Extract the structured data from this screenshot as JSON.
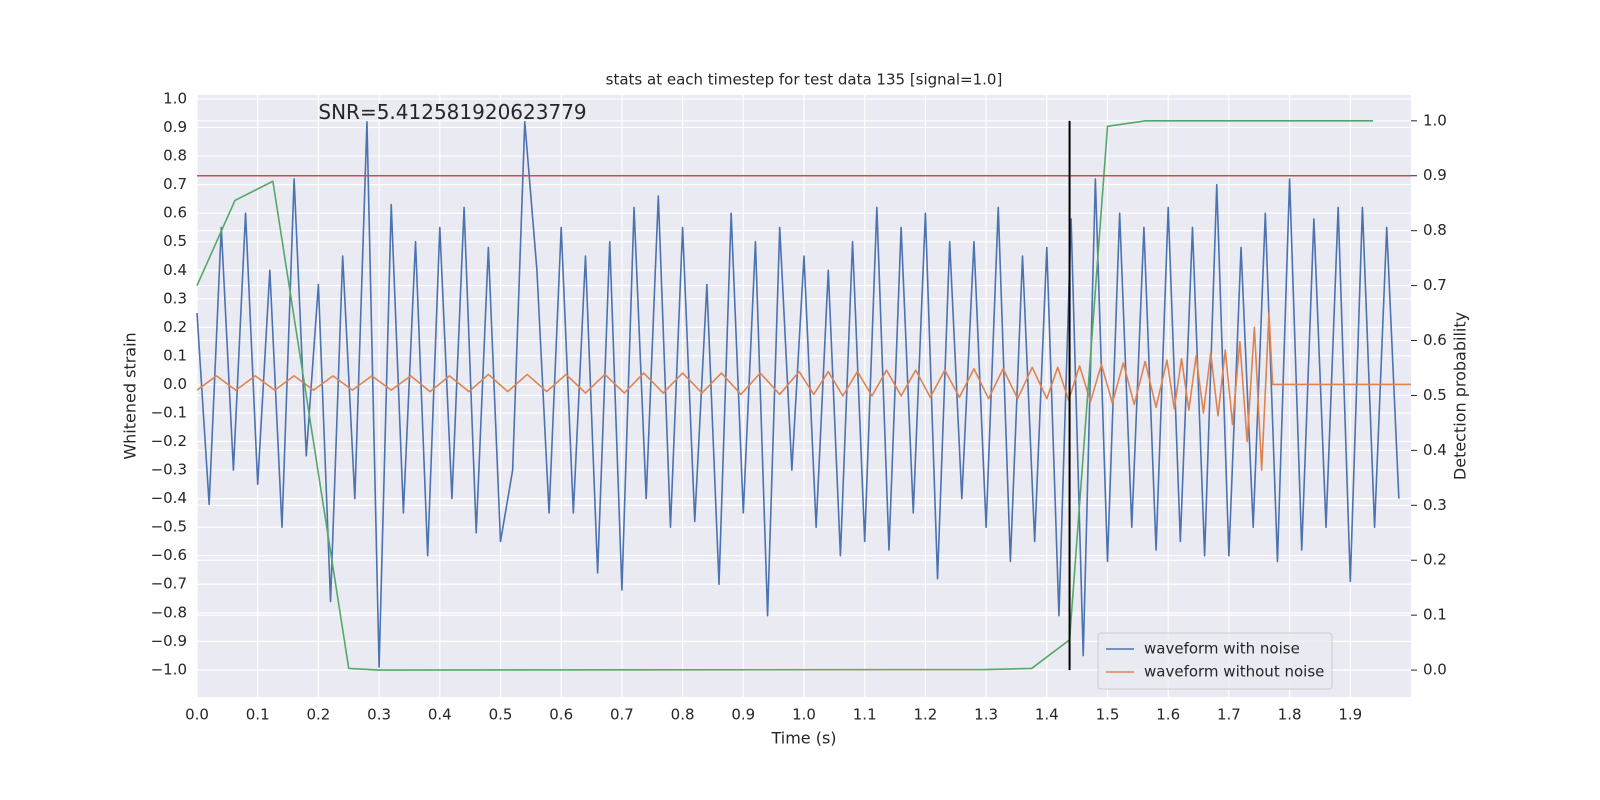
{
  "chart_data": {
    "type": "line",
    "title": "stats at each timestep for test data 135 [signal=1.0]",
    "xlabel": "Time (s)",
    "ylabel": "Whitened strain",
    "y2label": "Detection probability",
    "annotation": {
      "text": "SNR=5.412581920623779",
      "x": 0.2,
      "y": 0.95
    },
    "xlim": [
      0,
      2.0
    ],
    "ylim": [
      -1.095,
      1.014
    ],
    "y2lim": [
      -0.049,
      1.047
    ],
    "xticks": [
      {
        "value": 0,
        "label": "0.0"
      },
      {
        "value": 0.1,
        "label": "0.1"
      },
      {
        "value": 0.2,
        "label": "0.2"
      },
      {
        "value": 0.3,
        "label": "0.3"
      },
      {
        "value": 0.4,
        "label": "0.4"
      },
      {
        "value": 0.5,
        "label": "0.5"
      },
      {
        "value": 0.6,
        "label": "0.6"
      },
      {
        "value": 0.7,
        "label": "0.7"
      },
      {
        "value": 0.8,
        "label": "0.8"
      },
      {
        "value": 0.9,
        "label": "0.9"
      },
      {
        "value": 1.0,
        "label": "1.0"
      },
      {
        "value": 1.1,
        "label": "1.1"
      },
      {
        "value": 1.2,
        "label": "1.2"
      },
      {
        "value": 1.3,
        "label": "1.3"
      },
      {
        "value": 1.4,
        "label": "1.4"
      },
      {
        "value": 1.5,
        "label": "1.5"
      },
      {
        "value": 1.6,
        "label": "1.6"
      },
      {
        "value": 1.7,
        "label": "1.7"
      },
      {
        "value": 1.8,
        "label": "1.8"
      },
      {
        "value": 1.9,
        "label": "1.9"
      }
    ],
    "yticks": [
      {
        "value": -1.0,
        "label": "−1.0"
      },
      {
        "value": -0.9,
        "label": "−0.9"
      },
      {
        "value": -0.8,
        "label": "−0.8"
      },
      {
        "value": -0.7,
        "label": "−0.7"
      },
      {
        "value": -0.6,
        "label": "−0.6"
      },
      {
        "value": -0.5,
        "label": "−0.5"
      },
      {
        "value": -0.4,
        "label": "−0.4"
      },
      {
        "value": -0.3,
        "label": "−0.3"
      },
      {
        "value": -0.2,
        "label": "−0.2"
      },
      {
        "value": -0.1,
        "label": "−0.1"
      },
      {
        "value": 0,
        "label": "0.0"
      },
      {
        "value": 0.1,
        "label": "0.1"
      },
      {
        "value": 0.2,
        "label": "0.2"
      },
      {
        "value": 0.3,
        "label": "0.3"
      },
      {
        "value": 0.4,
        "label": "0.4"
      },
      {
        "value": 0.5,
        "label": "0.5"
      },
      {
        "value": 0.6,
        "label": "0.6"
      },
      {
        "value": 0.7,
        "label": "0.7"
      },
      {
        "value": 0.8,
        "label": "0.8"
      },
      {
        "value": 0.9,
        "label": "0.9"
      },
      {
        "value": 1.0,
        "label": "1.0"
      }
    ],
    "y2ticks": [
      {
        "value": 0,
        "label": "0.0"
      },
      {
        "value": 0.1,
        "label": "0.1"
      },
      {
        "value": 0.2,
        "label": "0.2"
      },
      {
        "value": 0.3,
        "label": "0.3"
      },
      {
        "value": 0.4,
        "label": "0.4"
      },
      {
        "value": 0.5,
        "label": "0.5"
      },
      {
        "value": 0.6,
        "label": "0.6"
      },
      {
        "value": 0.7,
        "label": "0.7"
      },
      {
        "value": 0.8,
        "label": "0.8"
      },
      {
        "value": 0.9,
        "label": "0.9"
      },
      {
        "value": 1.0,
        "label": "1.0"
      }
    ],
    "grid": true,
    "legend_loc": "lower right",
    "series": [
      {
        "name": "waveform with noise",
        "color": "#4c72b0",
        "x": [
          0,
          0.02,
          0.04,
          0.06,
          0.08,
          0.1,
          0.12,
          0.14,
          0.16,
          0.18,
          0.2,
          0.22,
          0.24,
          0.26,
          0.28,
          0.3,
          0.32,
          0.34,
          0.36,
          0.38,
          0.4,
          0.42,
          0.44,
          0.46,
          0.48,
          0.5,
          0.52,
          0.54,
          0.56,
          0.58,
          0.6,
          0.62,
          0.64,
          0.66,
          0.68,
          0.7,
          0.72,
          0.74,
          0.76,
          0.78,
          0.8,
          0.82,
          0.84,
          0.86,
          0.88,
          0.9,
          0.92,
          0.94,
          0.96,
          0.98,
          1.0,
          1.02,
          1.04,
          1.06,
          1.08,
          1.1,
          1.12,
          1.14,
          1.16,
          1.18,
          1.2,
          1.22,
          1.24,
          1.26,
          1.28,
          1.3,
          1.32,
          1.34,
          1.36,
          1.38,
          1.4,
          1.42,
          1.44,
          1.46,
          1.48,
          1.5,
          1.52,
          1.54,
          1.56,
          1.58,
          1.6,
          1.62,
          1.64,
          1.66,
          1.68,
          1.7,
          1.72,
          1.74,
          1.76,
          1.78,
          1.8,
          1.82,
          1.84,
          1.86,
          1.88,
          1.9,
          1.92,
          1.94,
          1.96,
          1.98
        ],
        "values": [
          0.25,
          -0.42,
          0.55,
          -0.3,
          0.6,
          -0.35,
          0.4,
          -0.5,
          0.72,
          -0.25,
          0.35,
          -0.76,
          0.45,
          -0.4,
          0.92,
          -0.99,
          0.63,
          -0.45,
          0.5,
          -0.6,
          0.55,
          -0.4,
          0.62,
          -0.52,
          0.48,
          -0.55,
          -0.3,
          0.92,
          0.4,
          -0.45,
          0.55,
          -0.45,
          0.45,
          -0.66,
          0.5,
          -0.72,
          0.62,
          -0.4,
          0.66,
          -0.5,
          0.55,
          -0.48,
          0.35,
          -0.7,
          0.6,
          -0.45,
          0.5,
          -0.81,
          0.55,
          -0.3,
          0.45,
          -0.5,
          0.4,
          -0.6,
          0.5,
          -0.55,
          0.62,
          -0.58,
          0.55,
          -0.45,
          0.6,
          -0.68,
          0.5,
          -0.4,
          0.5,
          -0.5,
          0.62,
          -0.62,
          0.45,
          -0.55,
          0.48,
          -0.81,
          0.58,
          -0.95,
          0.72,
          -0.62,
          0.6,
          -0.5,
          0.55,
          -0.58,
          0.62,
          -0.55,
          0.55,
          -0.6,
          0.7,
          -0.6,
          0.48,
          -0.5,
          0.6,
          -0.62,
          0.72,
          -0.58,
          0.58,
          -0.5,
          0.62,
          -0.69,
          0.62,
          -0.5,
          0.55,
          -0.4
        ]
      },
      {
        "name": "waveform without noise",
        "color": "#dd8452",
        "x": [
          0,
          0.032,
          0.064,
          0.096,
          0.128,
          0.16,
          0.192,
          0.224,
          0.256,
          0.288,
          0.32,
          0.352,
          0.384,
          0.416,
          0.448,
          0.48,
          0.512,
          0.544,
          0.576,
          0.608,
          0.64,
          0.672,
          0.704,
          0.736,
          0.768,
          0.8,
          0.832,
          0.864,
          0.896,
          0.928,
          0.96,
          0.992,
          1.016,
          1.04,
          1.064,
          1.088,
          1.112,
          1.136,
          1.16,
          1.184,
          1.208,
          1.232,
          1.256,
          1.28,
          1.304,
          1.328,
          1.352,
          1.376,
          1.4,
          1.418,
          1.436,
          1.454,
          1.472,
          1.49,
          1.508,
          1.526,
          1.544,
          1.562,
          1.58,
          1.598,
          1.61,
          1.622,
          1.634,
          1.646,
          1.658,
          1.67,
          1.682,
          1.694,
          1.706,
          1.718,
          1.73,
          1.742,
          1.754,
          1.766,
          1.772,
          2.0
        ],
        "values": [
          -0.02,
          0.03,
          -0.02,
          0.03,
          -0.02,
          0.03,
          -0.02,
          0.03,
          -0.02,
          0.03,
          -0.02,
          0.03,
          -0.025,
          0.03,
          -0.025,
          0.035,
          -0.025,
          0.035,
          -0.025,
          0.035,
          -0.03,
          0.035,
          -0.03,
          0.04,
          -0.03,
          0.04,
          -0.03,
          0.04,
          -0.035,
          0.04,
          -0.035,
          0.045,
          -0.035,
          0.045,
          -0.04,
          0.045,
          -0.04,
          0.05,
          -0.04,
          0.05,
          -0.045,
          0.05,
          -0.045,
          0.055,
          -0.05,
          0.055,
          -0.05,
          0.06,
          -0.05,
          0.06,
          -0.055,
          0.065,
          -0.06,
          0.07,
          -0.065,
          0.075,
          -0.07,
          0.08,
          -0.08,
          0.085,
          -0.085,
          0.09,
          -0.09,
          0.1,
          -0.1,
          0.11,
          -0.11,
          0.12,
          -0.14,
          0.15,
          -0.2,
          0.2,
          -0.3,
          0.25,
          0.0,
          0.0
        ]
      },
      {
        "color": "#55a868",
        "axis": "y2",
        "x": [
          0,
          0.0625,
          0.125,
          0.25,
          0.3,
          1.3,
          1.375,
          1.4375,
          1.5,
          1.5625,
          1.9375
        ],
        "values": [
          0.7,
          0.855,
          0.89,
          0.003,
          0.0,
          0.001,
          0.003,
          0.055,
          0.99,
          1.0,
          1.0
        ]
      }
    ],
    "threshold": {
      "value": 0.9,
      "axis": "y2",
      "color": "#c44e52"
    },
    "vline": {
      "x": 1.4375,
      "range": [
        0,
        1.0
      ],
      "axis": "y2",
      "color": "#000000"
    }
  }
}
